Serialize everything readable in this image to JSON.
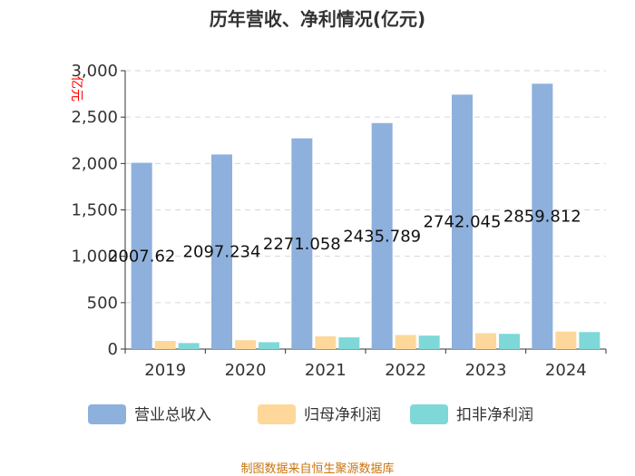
{
  "chart_data": {
    "type": "bar",
    "title": "历年营收、净利情况(亿元)",
    "unit_label": "亿元",
    "categories": [
      "2019",
      "2020",
      "2021",
      "2022",
      "2023",
      "2024"
    ],
    "y_ticks": [
      "0",
      "500",
      "1,000",
      "1,500",
      "2,000",
      "2,500",
      "3,000"
    ],
    "ylim": [
      0,
      3000
    ],
    "grid": true,
    "legend_position": "bottom",
    "series": [
      {
        "name": "营业总收入",
        "color": "#8eb0dd",
        "values": [
          2007.62,
          2097.234,
          2271.058,
          2435.789,
          2742.045,
          2859.812
        ],
        "labels": [
          "2007.62",
          "2097.234",
          "2271.058",
          "2435.789",
          "2742.045",
          "2859.812"
        ]
      },
      {
        "name": "归母净利润",
        "color": "#fdd89a",
        "values": [
          88,
          96,
          137,
          152,
          171,
          189
        ]
      },
      {
        "name": "扣非净利润",
        "color": "#7fd8d8",
        "values": [
          65,
          74,
          126,
          145,
          164,
          183
        ]
      }
    ],
    "source": "制图数据来自恒生聚源数据库"
  }
}
